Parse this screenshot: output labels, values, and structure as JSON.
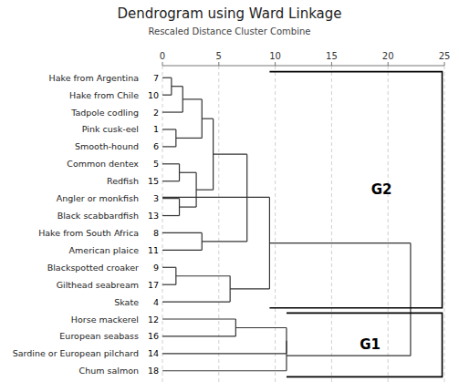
{
  "chart_data": {
    "type": "dendrogram",
    "title": "Dendrogram using Ward Linkage",
    "subtitle": "Rescaled Distance Cluster Combine",
    "categories": [
      "Hake from Argentina",
      "Hake from Chile",
      "Tadpole codling",
      "Pink cusk-eel",
      "Smooth-hound",
      "Common dentex",
      "Redfish",
      "Angler or monkfish",
      "Black scabbardfish",
      "Hake from South Africa",
      "American plaice",
      "Blackspotted croaker",
      "Gilthead seabream",
      "Skate",
      "Horse mackerel",
      "European seabass",
      "Sardine or European pilchard",
      "Chum salmon"
    ],
    "ids": [
      7,
      10,
      2,
      1,
      6,
      5,
      15,
      3,
      13,
      8,
      11,
      9,
      17,
      4,
      12,
      16,
      14,
      18
    ],
    "merges": [
      {
        "rows": [
          0,
          1
        ],
        "dist": 0.8
      },
      {
        "rows": [
          0.5,
          2
        ],
        "dist": 1.8
      },
      {
        "rows": [
          3,
          4
        ],
        "dist": 1.2
      },
      {
        "rows": [
          1.25,
          3.5
        ],
        "dist": 3.5
      },
      {
        "rows": [
          5,
          6
        ],
        "dist": 1.5
      },
      {
        "rows": [
          7,
          8
        ],
        "dist": 1.5
      },
      {
        "rows": [
          5.5,
          7.5
        ],
        "dist": 3.0
      },
      {
        "rows": [
          2.375,
          6.5
        ],
        "dist": 4.5
      },
      {
        "rows": [
          9,
          10
        ],
        "dist": 3.5
      },
      {
        "rows": [
          4.4375,
          9.5
        ],
        "dist": 7.5
      },
      {
        "rows": [
          11,
          12
        ],
        "dist": 1.2
      },
      {
        "rows": [
          11.5,
          13
        ],
        "dist": 6.0
      },
      {
        "rows": [
          6.9375,
          12.25
        ],
        "dist": 9.5
      },
      {
        "rows": [
          14,
          15
        ],
        "dist": 6.5
      },
      {
        "rows": [
          14.5,
          16
        ],
        "dist": 11.0
      },
      {
        "rows": [
          15.25,
          17
        ],
        "dist": 11.0
      },
      {
        "rows": [
          9.59375,
          16.125
        ],
        "dist": 22.0
      }
    ],
    "groups": [
      {
        "label": "G2",
        "x0": 9.5,
        "x1": 24.8,
        "row_top": 0,
        "row_bot": 13,
        "label_x": 18.5,
        "label_row": 6.5
      },
      {
        "label": "G1",
        "x0": 11.0,
        "x1": 24.8,
        "row_top": 14,
        "row_bot": 17,
        "label_x": 17.5,
        "label_row": 15.5
      }
    ],
    "color": "#333333",
    "xlim": [
      0,
      25
    ],
    "xticks": [
      0,
      5,
      10,
      15,
      20,
      25
    ],
    "grid": true
  }
}
